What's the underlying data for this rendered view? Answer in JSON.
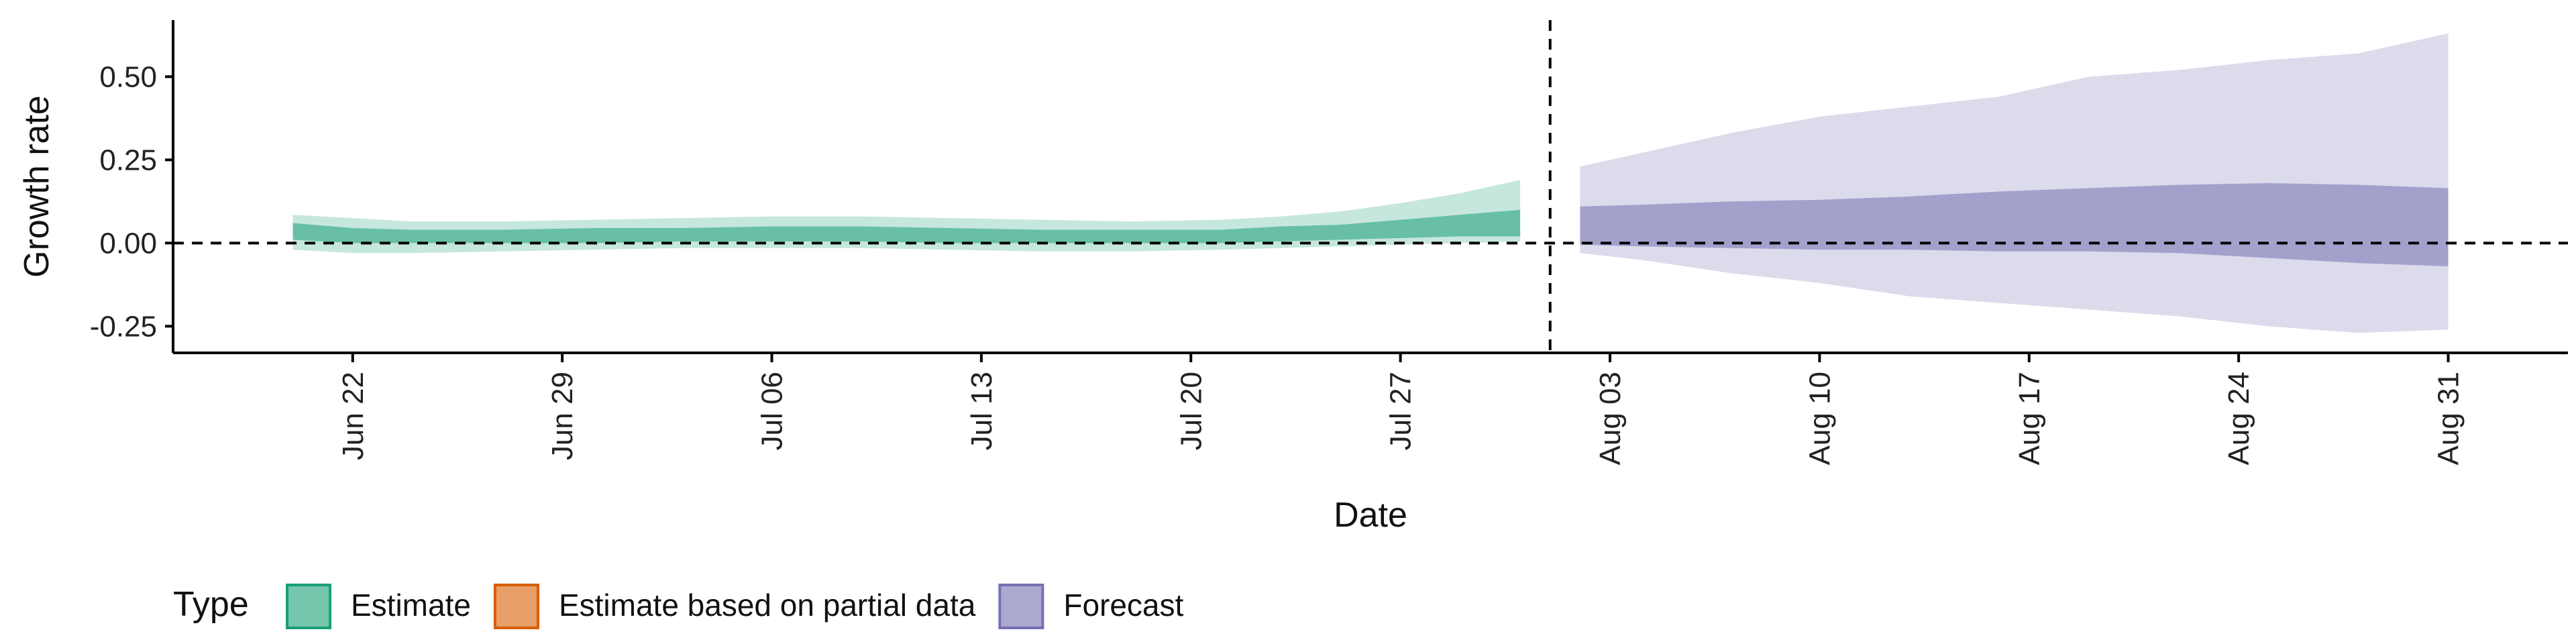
{
  "chart_data": {
    "type": "area",
    "xlabel": "Date",
    "ylabel": "Growth rate",
    "ylim": [
      -0.33,
      0.67
    ],
    "y_ticks": [
      -0.25,
      0.0,
      0.25,
      0.5
    ],
    "y_tick_labels": [
      "-0.25",
      "0.00",
      "0.25",
      "0.50"
    ],
    "x_ticks": [
      "2020-06-22",
      "2020-06-29",
      "2020-07-06",
      "2020-07-13",
      "2020-07-20",
      "2020-07-27",
      "2020-08-03",
      "2020-08-10",
      "2020-08-17",
      "2020-08-24",
      "2020-08-31"
    ],
    "x_tick_labels": [
      "Jun 22",
      "Jun 29",
      "Jul 06",
      "Jul 13",
      "Jul 20",
      "Jul 27",
      "Aug 03",
      "Aug 10",
      "Aug 17",
      "Aug 24",
      "Aug 31"
    ],
    "xlim": [
      "2020-06-16",
      "2020-09-04"
    ],
    "reference_lines": {
      "horizontal_y": 0.0,
      "vertical_x": "2020-08-01",
      "style": "dashed"
    },
    "grid": false,
    "legend": {
      "title": "Type",
      "position": "bottom",
      "items": [
        {
          "label": "Estimate",
          "color": "#1b9e77"
        },
        {
          "label": "Estimate based on partial data",
          "color": "#d95f02"
        },
        {
          "label": "Forecast",
          "color": "#7570b3"
        }
      ]
    },
    "series": [
      {
        "name": "Estimate",
        "color": "#1b9e77",
        "x": [
          "2020-06-20",
          "2020-06-22",
          "2020-06-24",
          "2020-06-27",
          "2020-06-30",
          "2020-07-03",
          "2020-07-06",
          "2020-07-09",
          "2020-07-12",
          "2020-07-15",
          "2020-07-18",
          "2020-07-21",
          "2020-07-23",
          "2020-07-25",
          "2020-07-27",
          "2020-07-29",
          "2020-07-31"
        ],
        "outer_upper": [
          0.085,
          0.075,
          0.065,
          0.065,
          0.07,
          0.075,
          0.08,
          0.08,
          0.075,
          0.07,
          0.065,
          0.07,
          0.08,
          0.095,
          0.12,
          0.15,
          0.19
        ],
        "inner_upper": [
          0.06,
          0.045,
          0.04,
          0.04,
          0.045,
          0.045,
          0.05,
          0.05,
          0.045,
          0.04,
          0.04,
          0.04,
          0.05,
          0.055,
          0.07,
          0.085,
          0.1
        ],
        "inner_lower": [
          0.01,
          0.0,
          0.0,
          0.0,
          0.0,
          0.005,
          0.005,
          0.005,
          0.0,
          0.0,
          0.0,
          0.0,
          0.005,
          0.01,
          0.015,
          0.02,
          0.02
        ],
        "outer_lower": [
          -0.02,
          -0.03,
          -0.03,
          -0.025,
          -0.02,
          -0.015,
          -0.015,
          -0.015,
          -0.02,
          -0.025,
          -0.025,
          -0.02,
          -0.015,
          -0.01,
          -0.005,
          -0.0,
          0.005
        ]
      },
      {
        "name": "Forecast",
        "color": "#7570b3",
        "x": [
          "2020-08-02",
          "2020-08-04",
          "2020-08-07",
          "2020-08-10",
          "2020-08-13",
          "2020-08-16",
          "2020-08-19",
          "2020-08-22",
          "2020-08-25",
          "2020-08-28",
          "2020-08-31"
        ],
        "outer_upper": [
          0.23,
          0.27,
          0.33,
          0.38,
          0.41,
          0.44,
          0.5,
          0.52,
          0.55,
          0.57,
          0.63
        ],
        "inner_upper": [
          0.11,
          0.115,
          0.125,
          0.13,
          0.14,
          0.155,
          0.165,
          0.175,
          0.18,
          0.175,
          0.165
        ],
        "inner_lower": [
          -0.005,
          -0.01,
          -0.015,
          -0.02,
          -0.02,
          -0.025,
          -0.025,
          -0.03,
          -0.045,
          -0.06,
          -0.07
        ],
        "outer_lower": [
          -0.03,
          -0.05,
          -0.09,
          -0.12,
          -0.16,
          -0.18,
          -0.2,
          -0.22,
          -0.25,
          -0.27,
          -0.26
        ]
      }
    ]
  }
}
